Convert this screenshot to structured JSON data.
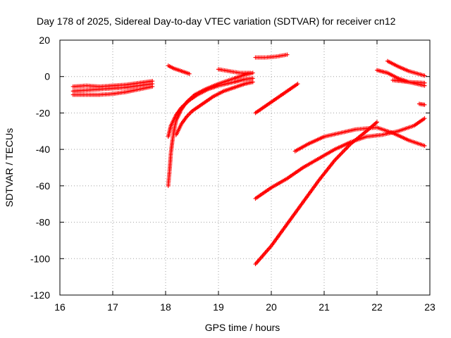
{
  "chart_data": {
    "type": "scatter",
    "title": "Day 178 of 2025, Sidereal Day-to-day VTEC variation (SDTVAR) for receiver cn12",
    "xlabel": "GPS time / hours",
    "ylabel": "SDTVAR / TECUs",
    "xlim": [
      16,
      23
    ],
    "ylim": [
      -120,
      20
    ],
    "xticks": [
      16,
      17,
      18,
      19,
      20,
      21,
      22,
      23
    ],
    "yticks": [
      -120,
      -100,
      -80,
      -60,
      -40,
      -20,
      0,
      20
    ],
    "grid": true,
    "marker": "+",
    "color": "#ff0000",
    "series": [
      {
        "points": [
          [
            16.25,
            -8
          ],
          [
            16.5,
            -7.5
          ],
          [
            16.75,
            -7
          ],
          [
            17.0,
            -6.5
          ],
          [
            17.25,
            -6
          ],
          [
            17.5,
            -5
          ],
          [
            17.75,
            -4
          ]
        ]
      },
      {
        "points": [
          [
            16.25,
            -5.5
          ],
          [
            16.5,
            -5
          ],
          [
            16.75,
            -5.5
          ],
          [
            17.0,
            -5
          ],
          [
            17.25,
            -4.5
          ],
          [
            17.5,
            -3.5
          ],
          [
            17.75,
            -2.5
          ]
        ]
      },
      {
        "points": [
          [
            16.25,
            -10
          ],
          [
            16.5,
            -10
          ],
          [
            16.75,
            -10
          ],
          [
            17.0,
            -9.5
          ],
          [
            17.25,
            -8.5
          ],
          [
            17.5,
            -7
          ],
          [
            17.75,
            -5.5
          ]
        ]
      },
      {
        "points": [
          [
            18.05,
            6
          ],
          [
            18.15,
            4.5
          ],
          [
            18.25,
            3.5
          ],
          [
            18.35,
            2.5
          ],
          [
            18.45,
            1.5
          ]
        ]
      },
      {
        "points": [
          [
            18.05,
            -60
          ],
          [
            18.08,
            -50
          ],
          [
            18.1,
            -42
          ],
          [
            18.13,
            -35
          ],
          [
            18.17,
            -28
          ],
          [
            18.2,
            -24
          ],
          [
            18.25,
            -21
          ],
          [
            18.3,
            -18
          ],
          [
            18.4,
            -14
          ],
          [
            18.55,
            -10
          ],
          [
            18.75,
            -7
          ],
          [
            19.0,
            -4
          ],
          [
            19.3,
            -1
          ],
          [
            19.5,
            1
          ],
          [
            19.65,
            2
          ]
        ]
      },
      {
        "points": [
          [
            18.05,
            -33
          ],
          [
            18.1,
            -27
          ],
          [
            18.2,
            -21
          ],
          [
            18.3,
            -17
          ],
          [
            18.45,
            -13
          ],
          [
            18.6,
            -10
          ],
          [
            18.8,
            -7
          ],
          [
            19.0,
            -5
          ],
          [
            19.3,
            -3
          ],
          [
            19.5,
            -1.5
          ],
          [
            19.65,
            -1
          ]
        ]
      },
      {
        "points": [
          [
            18.2,
            -32
          ],
          [
            18.3,
            -26
          ],
          [
            18.4,
            -22
          ],
          [
            18.5,
            -19
          ],
          [
            18.7,
            -15
          ],
          [
            18.9,
            -11
          ],
          [
            19.1,
            -8
          ],
          [
            19.3,
            -6
          ],
          [
            19.5,
            -4
          ],
          [
            19.65,
            -3
          ]
        ]
      },
      {
        "points": [
          [
            19.0,
            4
          ],
          [
            19.2,
            3
          ],
          [
            19.4,
            2
          ],
          [
            19.6,
            2
          ]
        ]
      },
      {
        "points": [
          [
            19.7,
            10.5
          ],
          [
            19.9,
            10.5
          ],
          [
            20.1,
            11
          ],
          [
            20.3,
            12
          ]
        ]
      },
      {
        "points": [
          [
            19.7,
            -20
          ],
          [
            19.9,
            -16
          ],
          [
            20.1,
            -12
          ],
          [
            20.3,
            -8
          ],
          [
            20.5,
            -4
          ]
        ]
      },
      {
        "points": [
          [
            20.45,
            -41
          ],
          [
            20.7,
            -37
          ],
          [
            21.0,
            -33
          ],
          [
            21.3,
            -31
          ],
          [
            21.6,
            -29
          ],
          [
            22.0,
            -28
          ],
          [
            22.3,
            -31
          ],
          [
            22.6,
            -35
          ],
          [
            22.9,
            -38
          ]
        ]
      },
      {
        "points": [
          [
            19.7,
            -67
          ],
          [
            20.0,
            -61
          ],
          [
            20.3,
            -56
          ],
          [
            20.6,
            -50
          ],
          [
            20.9,
            -45
          ],
          [
            21.2,
            -40
          ],
          [
            21.5,
            -36
          ],
          [
            21.8,
            -33
          ],
          [
            22.1,
            -32
          ],
          [
            22.4,
            -30
          ],
          [
            22.7,
            -27
          ],
          [
            22.9,
            -23
          ]
        ]
      },
      {
        "points": [
          [
            19.7,
            -103
          ],
          [
            20.0,
            -93
          ],
          [
            20.3,
            -81
          ],
          [
            20.6,
            -69
          ],
          [
            20.9,
            -57
          ],
          [
            21.2,
            -46
          ],
          [
            21.5,
            -37
          ],
          [
            21.8,
            -30
          ],
          [
            22.0,
            -25
          ]
        ]
      },
      {
        "points": [
          [
            22.0,
            3.5
          ],
          [
            22.2,
            2
          ],
          [
            22.4,
            -1
          ],
          [
            22.6,
            -3
          ],
          [
            22.9,
            -5
          ]
        ]
      },
      {
        "points": [
          [
            22.2,
            8.5
          ],
          [
            22.4,
            5.5
          ],
          [
            22.6,
            3
          ],
          [
            22.9,
            0.5
          ]
        ]
      },
      {
        "points": [
          [
            22.3,
            -2
          ],
          [
            22.6,
            -3
          ],
          [
            22.9,
            -3.5
          ]
        ]
      },
      {
        "points": [
          [
            22.8,
            -15
          ],
          [
            22.9,
            -15.5
          ]
        ]
      }
    ]
  }
}
